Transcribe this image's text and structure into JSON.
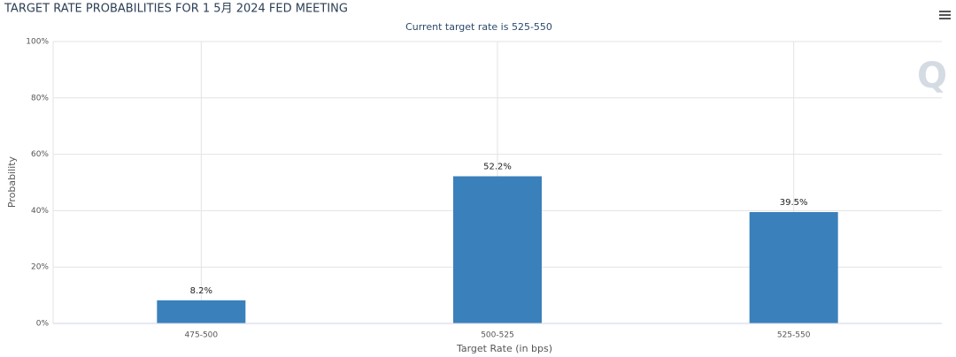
{
  "chart_data": {
    "type": "bar",
    "title": "TARGET RATE PROBABILITIES FOR 1 5月 2024 FED MEETING",
    "subtitle": "Current target rate is 525-550",
    "x_label": "Target Rate (in bps)",
    "y_label": "Probability",
    "categories": [
      "475-500",
      "500-525",
      "525-550"
    ],
    "values": [
      8.2,
      52.2,
      39.5
    ],
    "value_labels": [
      "8.2%",
      "52.2%",
      "39.5%"
    ],
    "color": "#3a80bb",
    "ylim": [
      0,
      100
    ],
    "yticks": [
      {
        "value": 0,
        "label": "0%"
      },
      {
        "value": 20,
        "label": "20%"
      },
      {
        "value": 40,
        "label": "40%"
      },
      {
        "value": 60,
        "label": "60%"
      },
      {
        "value": 80,
        "label": "80%"
      },
      {
        "value": 100,
        "label": "100%"
      }
    ],
    "grid": true
  }
}
